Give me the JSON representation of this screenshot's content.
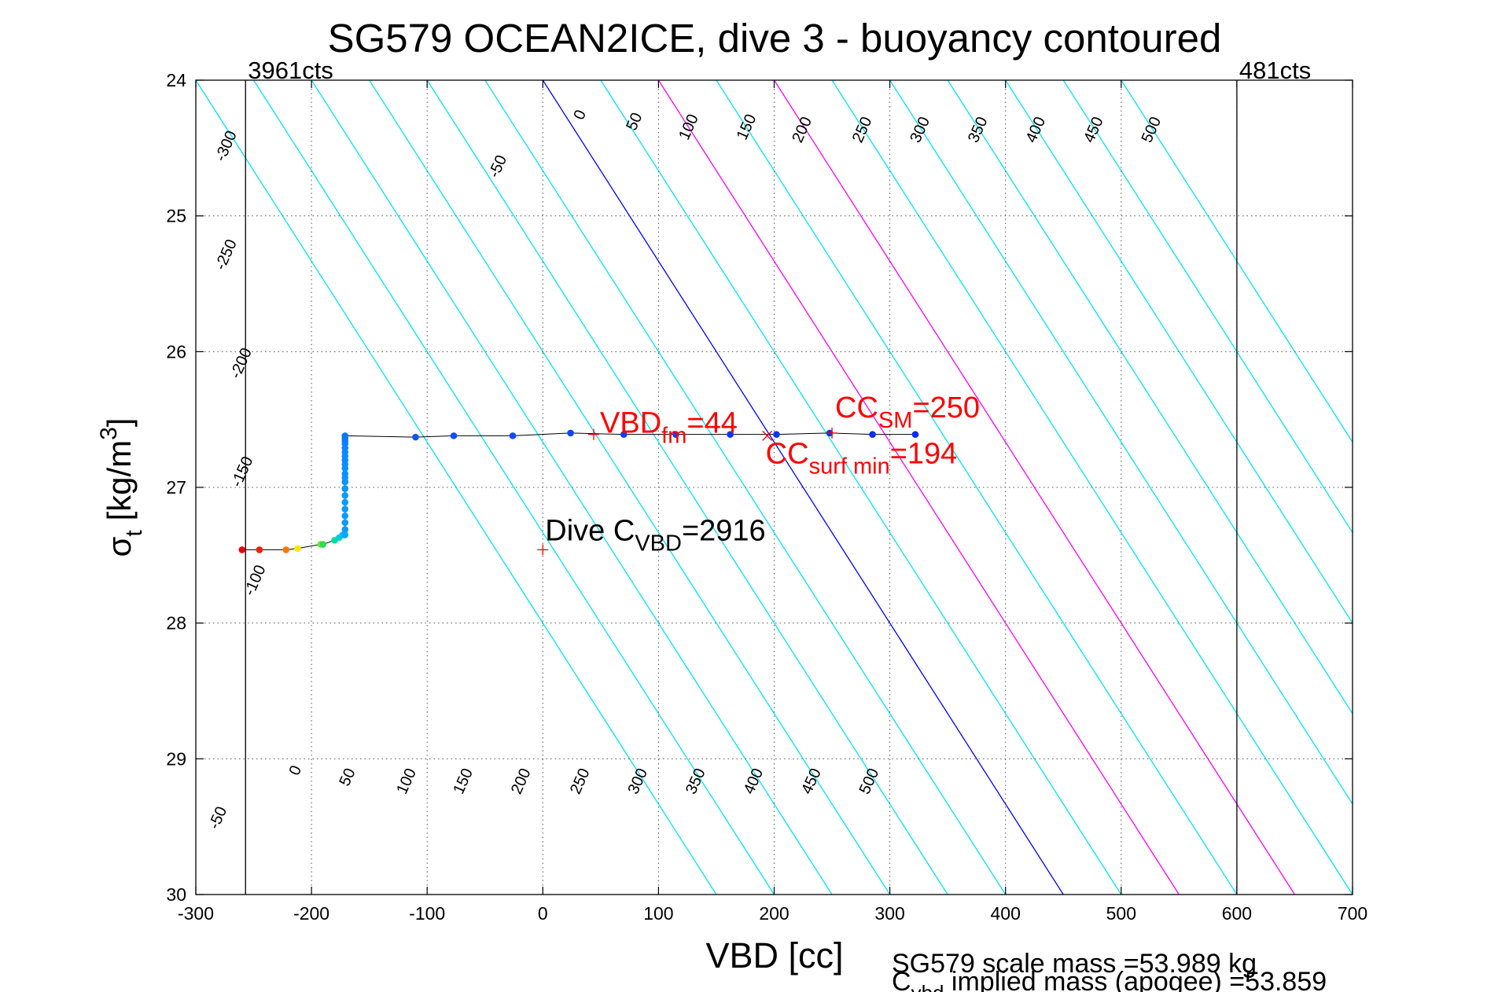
{
  "chart_data": {
    "type": "scatter",
    "title": "SG579 OCEAN2ICE, dive 3 - buoyancy contoured",
    "xlabel": "VBD [cc]",
    "ylabel": {
      "base": "σ",
      "sub": "t",
      "unit": " [kg/m",
      "sup": "3",
      "close": "]"
    },
    "xlim": [
      -300,
      700
    ],
    "ylim": [
      24,
      30
    ],
    "y_reversed": true,
    "grid": true,
    "xticks": [
      -300,
      -200,
      -100,
      0,
      100,
      200,
      300,
      400,
      500,
      600,
      700
    ],
    "yticks": [
      24,
      25,
      26,
      27,
      28,
      29,
      30
    ],
    "contour_slope_cc_per_sigma": 75,
    "contours": [
      {
        "level": -300,
        "color": "#00e5ee"
      },
      {
        "level": -250,
        "color": "#00e5ee"
      },
      {
        "level": -200,
        "color": "#00e5ee"
      },
      {
        "level": -150,
        "color": "#00e5ee"
      },
      {
        "level": -100,
        "color": "#00e5ee"
      },
      {
        "level": -50,
        "color": "#00e5ee"
      },
      {
        "level": 0,
        "color": "#0000ff"
      },
      {
        "level": 50,
        "color": "#00e5ee"
      },
      {
        "level": 100,
        "color": "#ff00ff"
      },
      {
        "level": 150,
        "color": "#00e5ee"
      },
      {
        "level": 200,
        "color": "#ff00ff"
      },
      {
        "level": 250,
        "color": "#00e5ee"
      },
      {
        "level": 300,
        "color": "#00e5ee"
      },
      {
        "level": 350,
        "color": "#00e5ee"
      },
      {
        "level": 400,
        "color": "#00e5ee"
      },
      {
        "level": 450,
        "color": "#00e5ee"
      },
      {
        "level": 500,
        "color": "#00e5ee"
      }
    ],
    "contour_labels": [
      {
        "text": "-300",
        "vbd": -270,
        "sigma": 24.5
      },
      {
        "text": "-250",
        "vbd": -270,
        "sigma": 25.3
      },
      {
        "text": "-200",
        "vbd": -257,
        "sigma": 26.1
      },
      {
        "text": "-150",
        "vbd": -256,
        "sigma": 26.9
      },
      {
        "text": "-100",
        "vbd": -245,
        "sigma": 27.7
      },
      {
        "text": "-50",
        "vbd": -35,
        "sigma": 24.65
      },
      {
        "text": "0",
        "vbd": 36,
        "sigma": 24.27
      },
      {
        "text": "50",
        "vbd": 83,
        "sigma": 24.32
      },
      {
        "text": "100",
        "vbd": 130,
        "sigma": 24.36
      },
      {
        "text": "150",
        "vbd": 180,
        "sigma": 24.36
      },
      {
        "text": "200",
        "vbd": 228,
        "sigma": 24.38
      },
      {
        "text": "250",
        "vbd": 280,
        "sigma": 24.38
      },
      {
        "text": "300",
        "vbd": 330,
        "sigma": 24.38
      },
      {
        "text": "350",
        "vbd": 380,
        "sigma": 24.38
      },
      {
        "text": "400",
        "vbd": 430,
        "sigma": 24.38
      },
      {
        "text": "450",
        "vbd": 480,
        "sigma": 24.38
      },
      {
        "text": "500",
        "vbd": 530,
        "sigma": 24.38
      },
      {
        "text": "-50",
        "vbd": -277,
        "sigma": 29.45
      },
      {
        "text": "0",
        "vbd": -210,
        "sigma": 29.1
      },
      {
        "text": "50",
        "vbd": -165,
        "sigma": 29.15
      },
      {
        "text": "100",
        "vbd": -114,
        "sigma": 29.18
      },
      {
        "text": "150",
        "vbd": -65,
        "sigma": 29.18
      },
      {
        "text": "200",
        "vbd": -15,
        "sigma": 29.18
      },
      {
        "text": "250",
        "vbd": 36,
        "sigma": 29.18
      },
      {
        "text": "300",
        "vbd": 86,
        "sigma": 29.18
      },
      {
        "text": "350",
        "vbd": 136,
        "sigma": 29.18
      },
      {
        "text": "400",
        "vbd": 186,
        "sigma": 29.18
      },
      {
        "text": "450",
        "vbd": 236,
        "sigma": 29.18
      },
      {
        "text": "500",
        "vbd": 286,
        "sigma": 29.18
      }
    ],
    "count_lines": [
      {
        "label": "3961cts",
        "vbd": -257
      },
      {
        "label": "481cts",
        "vbd": 600
      }
    ],
    "series": [
      {
        "x": [
          -260,
          -245,
          -222,
          -212,
          -192,
          -190,
          -180,
          -176,
          -173,
          -171,
          -171,
          -171,
          -171,
          -171,
          -171,
          -171,
          -171,
          -171,
          -171,
          -171,
          -171,
          -171,
          -171,
          -171,
          -171,
          -171,
          -171,
          -171,
          -171,
          -171,
          -110,
          -77,
          -26,
          24,
          70,
          115,
          162,
          202,
          248,
          285,
          322
        ],
        "y": [
          27.46,
          27.46,
          27.46,
          27.45,
          27.42,
          27.42,
          27.39,
          27.37,
          27.35,
          27.35,
          27.31,
          27.26,
          27.21,
          27.16,
          27.11,
          27.06,
          27.01,
          26.96,
          26.93,
          26.9,
          26.86,
          26.83,
          26.8,
          26.77,
          26.74,
          26.71,
          26.68,
          26.66,
          26.64,
          26.62,
          26.63,
          26.62,
          26.62,
          26.6,
          26.61,
          26.61,
          26.61,
          26.61,
          26.6,
          26.61,
          26.61
        ],
        "colors": [
          "#e8000b",
          "#ee2200",
          "#ff7700",
          "#ffe800",
          "#60ee20",
          "#30dd50",
          "#00dd99",
          "#00ccdd",
          "#00bbff",
          "#00aaff",
          "#0a9bff",
          "#0a9bff",
          "#0a9bff",
          "#0a9bff",
          "#0a9bff",
          "#0a9bff",
          "#0a95ff",
          "#0a95ff",
          "#0a95ff",
          "#0a90ff",
          "#0a90ff",
          "#0a90ff",
          "#0a8aff",
          "#0a8aff",
          "#0a8aff",
          "#0a85ff",
          "#0a85ff",
          "#0a80ff",
          "#0a7bff",
          "#0a75ff",
          "#0d55ff",
          "#0d4fff",
          "#0d4aff",
          "#0d45ff",
          "#0d40ff",
          "#0d3cff",
          "#0d38ff",
          "#0d34ff",
          "#0d30ff",
          "#0d2cff",
          "#0d28ff"
        ]
      }
    ],
    "annotations": [
      {
        "base": "VBD",
        "sub": "fm",
        "rest": "=44",
        "color": "#ff0000",
        "marker": "+",
        "vbd": 44,
        "sigma": 26.61
      },
      {
        "base": "CC",
        "sub": "SM",
        "rest": "=250",
        "color": "#ff0000",
        "marker": "+",
        "vbd": 250,
        "sigma": 26.6
      },
      {
        "base": "CC",
        "sub": "surf min",
        "rest": "=194",
        "color": "#ff0000",
        "marker": "x",
        "vbd": 194,
        "sigma": 26.62
      },
      {
        "base": "Dive C",
        "sub": "VBD",
        "rest": "=2916",
        "color": "#000000",
        "marker": "+",
        "vbd": 0,
        "sigma": 27.46
      }
    ],
    "footer": [
      {
        "text": "SG579 scale mass =53.989 kg"
      },
      {
        "base": "C",
        "sub": "vbd",
        "rest": " implied mass (apogee) =53.859"
      }
    ]
  }
}
